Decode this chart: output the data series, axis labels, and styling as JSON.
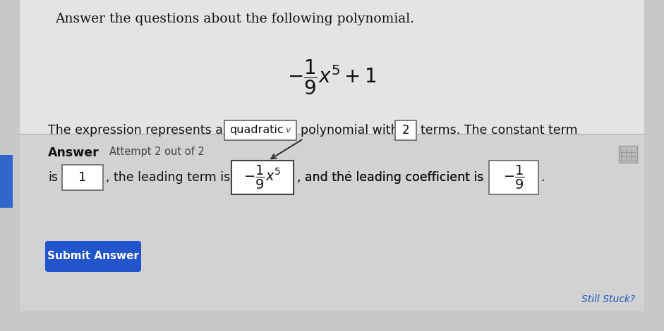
{
  "bg_outer": "#c8c8c8",
  "bg_top": "#e4e4e4",
  "bg_bottom": "#d2d2d2",
  "header_text": "Answer the questions about the following polynomial.",
  "answer_label": "Answer",
  "attempt_text": "Attempt 2 out of 2",
  "submit_button_text": "Submit Answer",
  "submit_button_color": "#2255cc",
  "submit_button_text_color": "#ffffff",
  "still_stuck_text": "Still Stuck?",
  "box_border_color": "#666666",
  "text_color": "#111111",
  "figsize": [
    9.41,
    4.7
  ],
  "dpi": 100
}
